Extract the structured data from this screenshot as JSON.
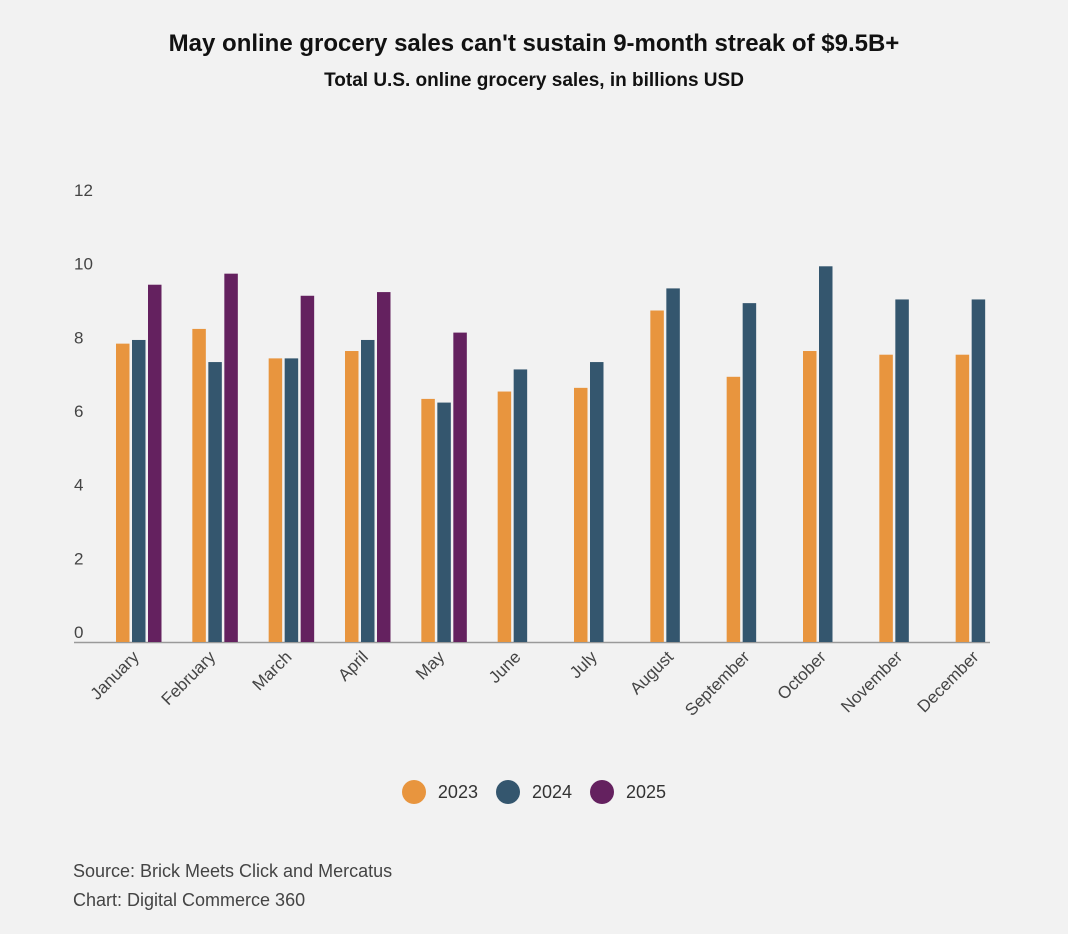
{
  "chart_data": {
    "type": "bar",
    "title": "May online grocery sales can't sustain 9-month streak of $9.5B+",
    "subtitle": "Total U.S. online grocery sales, in billions USD",
    "xlabel": "",
    "ylabel": "",
    "ylim": [
      0,
      12
    ],
    "yticks": [
      0,
      2,
      4,
      6,
      8,
      10,
      12
    ],
    "grid": false,
    "legend_position": "bottom-center",
    "categories": [
      "January",
      "February",
      "March",
      "April",
      "May",
      "June",
      "July",
      "August",
      "September",
      "October",
      "November",
      "December"
    ],
    "series": [
      {
        "name": "2023",
        "color": "#e8953e",
        "values": [
          8.1,
          8.5,
          7.7,
          7.9,
          6.6,
          6.8,
          6.9,
          9.0,
          7.2,
          7.9,
          7.8,
          7.8
        ]
      },
      {
        "name": "2024",
        "color": "#34566e",
        "values": [
          8.2,
          7.6,
          7.7,
          8.2,
          6.5,
          7.4,
          7.6,
          9.6,
          9.2,
          10.2,
          9.3,
          9.3
        ]
      },
      {
        "name": "2025",
        "color": "#64215f",
        "values": [
          9.7,
          10.0,
          9.4,
          9.5,
          8.4,
          null,
          null,
          null,
          null,
          null,
          null,
          null
        ]
      }
    ]
  },
  "source": {
    "line1": "Source: Brick Meets Click and Mercatus",
    "line2": "Chart: Digital Commerce 360"
  }
}
